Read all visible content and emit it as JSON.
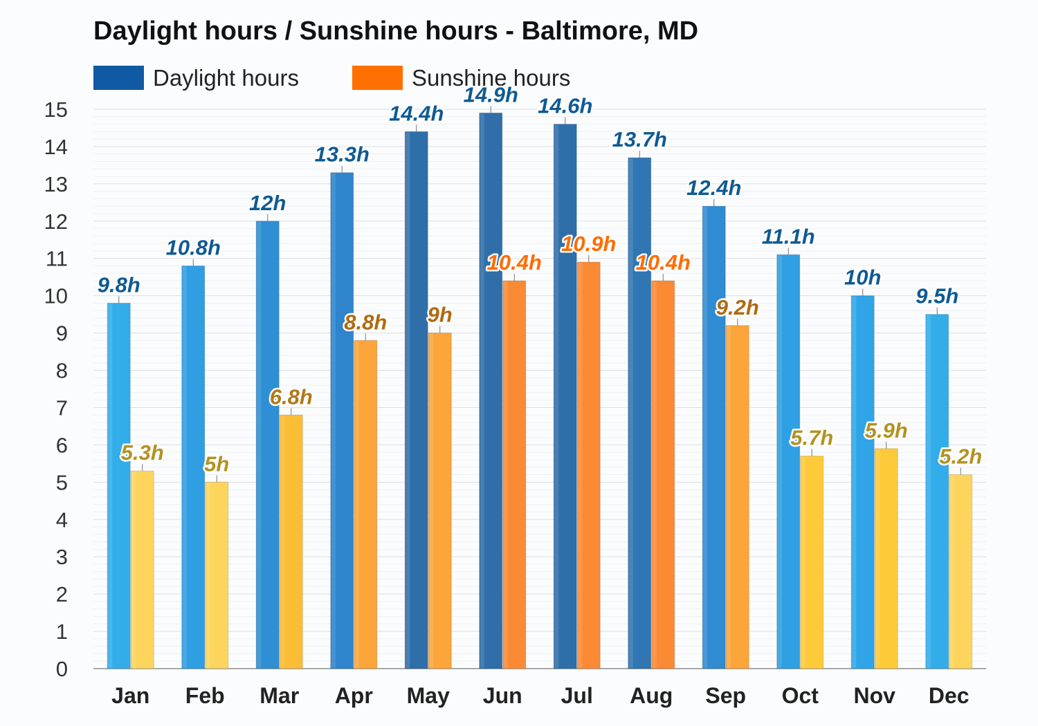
{
  "title": "Daylight hours / Sunshine hours - Baltimore, MD",
  "legend": [
    {
      "label": "Daylight hours",
      "color": "#0f5aa3"
    },
    {
      "label": "Sunshine hours",
      "color": "#ff7000"
    }
  ],
  "chart_data": {
    "type": "bar",
    "title": "Daylight hours / Sunshine hours - Baltimore, MD",
    "xlabel": "",
    "ylabel": "",
    "ylim": [
      0,
      15
    ],
    "yticks": [
      0,
      1,
      2,
      3,
      4,
      5,
      6,
      7,
      8,
      9,
      10,
      11,
      12,
      13,
      14,
      15
    ],
    "grid": true,
    "legend_position": "top-left",
    "categories": [
      "Jan",
      "Feb",
      "Mar",
      "Apr",
      "May",
      "Jun",
      "Jul",
      "Aug",
      "Sep",
      "Oct",
      "Nov",
      "Dec"
    ],
    "series": [
      {
        "name": "Daylight hours",
        "values": [
          9.8,
          10.8,
          12,
          13.3,
          14.4,
          14.9,
          14.6,
          13.7,
          12.4,
          11.1,
          10,
          9.5
        ],
        "labels": [
          "9.8h",
          "10.8h",
          "12h",
          "13.3h",
          "14.4h",
          "14.9h",
          "14.6h",
          "13.7h",
          "12.4h",
          "11.1h",
          "10h",
          "9.5h"
        ],
        "colors": [
          "#33adea",
          "#2f9ee2",
          "#2f8fd4",
          "#2e85cc",
          "#2f6fa9",
          "#2f6ea8",
          "#2f6fa9",
          "#2f76b2",
          "#2f8bd2",
          "#2fa0e4",
          "#2fa5e8",
          "#33adea"
        ],
        "label_colors": [
          "#0e5a94",
          "#0e5a94",
          "#0e5a94",
          "#0e5a94",
          "#0e5a94",
          "#0e5a94",
          "#0e5a94",
          "#0e5a94",
          "#0e5a94",
          "#0e5a94",
          "#0e5a94",
          "#0e5a94"
        ]
      },
      {
        "name": "Sunshine hours",
        "values": [
          5.3,
          5,
          6.8,
          8.8,
          9,
          10.4,
          10.9,
          10.4,
          9.2,
          5.7,
          5.9,
          5.2
        ],
        "labels": [
          "5.3h",
          "5h",
          "6.8h",
          "8.8h",
          "9h",
          "10.4h",
          "10.9h",
          "10.4h",
          "9.2h",
          "5.7h",
          "5.9h",
          "5.2h"
        ],
        "colors": [
          "#fdd55c",
          "#fdd55c",
          "#fbbd35",
          "#fba53a",
          "#fba53a",
          "#fb8a35",
          "#fb8a35",
          "#fb8a35",
          "#fba53a",
          "#fdca3a",
          "#fdca3a",
          "#fdd55c"
        ],
        "label_colors": [
          "#b39222",
          "#b39222",
          "#b07a18",
          "#b06a10",
          "#b06a10",
          "#ff6b00",
          "#ff6b00",
          "#ff6b00",
          "#b06a10",
          "#b39222",
          "#b39222",
          "#b39222"
        ]
      }
    ]
  }
}
